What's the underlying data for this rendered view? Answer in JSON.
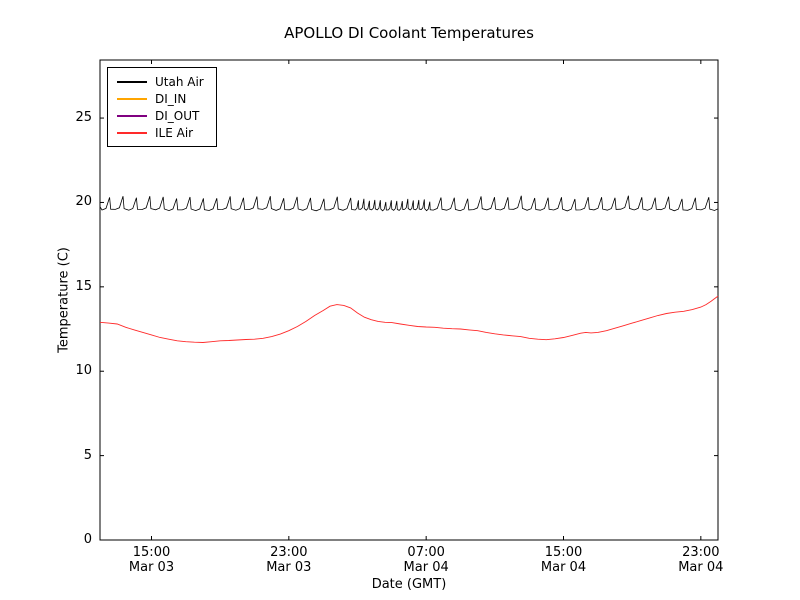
{
  "chart_data": {
    "type": "line",
    "title": "APOLLO DI Coolant Temperatures",
    "xlabel": "Date (GMT)",
    "ylabel": "Temperature (C)",
    "ylim": [
      0,
      28.44
    ],
    "xlim_hours": [
      0,
      36
    ],
    "grid": false,
    "legend_position": "upper left",
    "y_ticks": [
      0,
      5,
      10,
      15,
      20,
      25
    ],
    "x_ticks": [
      {
        "hour": 3,
        "time": "15:00",
        "date": "Mar 03"
      },
      {
        "hour": 11,
        "time": "23:00",
        "date": "Mar 03"
      },
      {
        "hour": 19,
        "time": "07:00",
        "date": "Mar 04"
      },
      {
        "hour": 27,
        "time": "15:00",
        "date": "Mar 04"
      },
      {
        "hour": 35,
        "time": "23:00",
        "date": "Mar 04"
      }
    ],
    "series": [
      {
        "name": "Utah Air",
        "color": "#000000",
        "style": "sawtooth-oscillation",
        "oscillation": {
          "low": 19.55,
          "high": 20.3,
          "period_h": 0.78,
          "dense_interval": {
            "from_h": 14.5,
            "to_h": 19.0,
            "period_h": 0.32
          }
        }
      },
      {
        "name": "DI_IN",
        "color": "#ffa500",
        "points": []
      },
      {
        "name": "DI_OUT",
        "color": "#800080",
        "points": []
      },
      {
        "name": "ILE Air",
        "color": "#ff2a2a",
        "points": [
          [
            0,
            12.9
          ],
          [
            0.5,
            12.85
          ],
          [
            1,
            12.8
          ],
          [
            1.5,
            12.6
          ],
          [
            2,
            12.45
          ],
          [
            2.5,
            12.3
          ],
          [
            3,
            12.15
          ],
          [
            3.5,
            12.0
          ],
          [
            4,
            11.9
          ],
          [
            4.5,
            11.8
          ],
          [
            5,
            11.75
          ],
          [
            5.5,
            11.72
          ],
          [
            6,
            11.7
          ],
          [
            6.5,
            11.75
          ],
          [
            7,
            11.8
          ],
          [
            7.5,
            11.82
          ],
          [
            8,
            11.85
          ],
          [
            8.5,
            11.88
          ],
          [
            9,
            11.9
          ],
          [
            9.5,
            11.95
          ],
          [
            10,
            12.05
          ],
          [
            10.5,
            12.2
          ],
          [
            11,
            12.4
          ],
          [
            11.5,
            12.65
          ],
          [
            12,
            12.95
          ],
          [
            12.5,
            13.3
          ],
          [
            13,
            13.6
          ],
          [
            13.4,
            13.85
          ],
          [
            13.8,
            13.95
          ],
          [
            14.2,
            13.9
          ],
          [
            14.6,
            13.75
          ],
          [
            15,
            13.45
          ],
          [
            15.4,
            13.2
          ],
          [
            15.8,
            13.05
          ],
          [
            16.2,
            12.95
          ],
          [
            16.6,
            12.9
          ],
          [
            17,
            12.88
          ],
          [
            17.5,
            12.8
          ],
          [
            18,
            12.72
          ],
          [
            18.5,
            12.65
          ],
          [
            19,
            12.62
          ],
          [
            19.5,
            12.6
          ],
          [
            20,
            12.55
          ],
          [
            20.5,
            12.52
          ],
          [
            21,
            12.5
          ],
          [
            21.5,
            12.45
          ],
          [
            22,
            12.4
          ],
          [
            22.5,
            12.3
          ],
          [
            23,
            12.22
          ],
          [
            23.5,
            12.15
          ],
          [
            24,
            12.1
          ],
          [
            24.5,
            12.05
          ],
          [
            25,
            11.95
          ],
          [
            25.5,
            11.9
          ],
          [
            26,
            11.87
          ],
          [
            26.5,
            11.92
          ],
          [
            27,
            12.0
          ],
          [
            27.5,
            12.12
          ],
          [
            28,
            12.25
          ],
          [
            28.3,
            12.3
          ],
          [
            28.6,
            12.27
          ],
          [
            29,
            12.3
          ],
          [
            29.5,
            12.4
          ],
          [
            30,
            12.55
          ],
          [
            30.5,
            12.7
          ],
          [
            31,
            12.85
          ],
          [
            31.5,
            13.0
          ],
          [
            32,
            13.15
          ],
          [
            32.5,
            13.3
          ],
          [
            33,
            13.42
          ],
          [
            33.5,
            13.5
          ],
          [
            34,
            13.55
          ],
          [
            34.5,
            13.65
          ],
          [
            35,
            13.8
          ],
          [
            35.3,
            13.95
          ],
          [
            35.6,
            14.15
          ],
          [
            35.8,
            14.3
          ],
          [
            36,
            14.45
          ]
        ]
      }
    ]
  }
}
